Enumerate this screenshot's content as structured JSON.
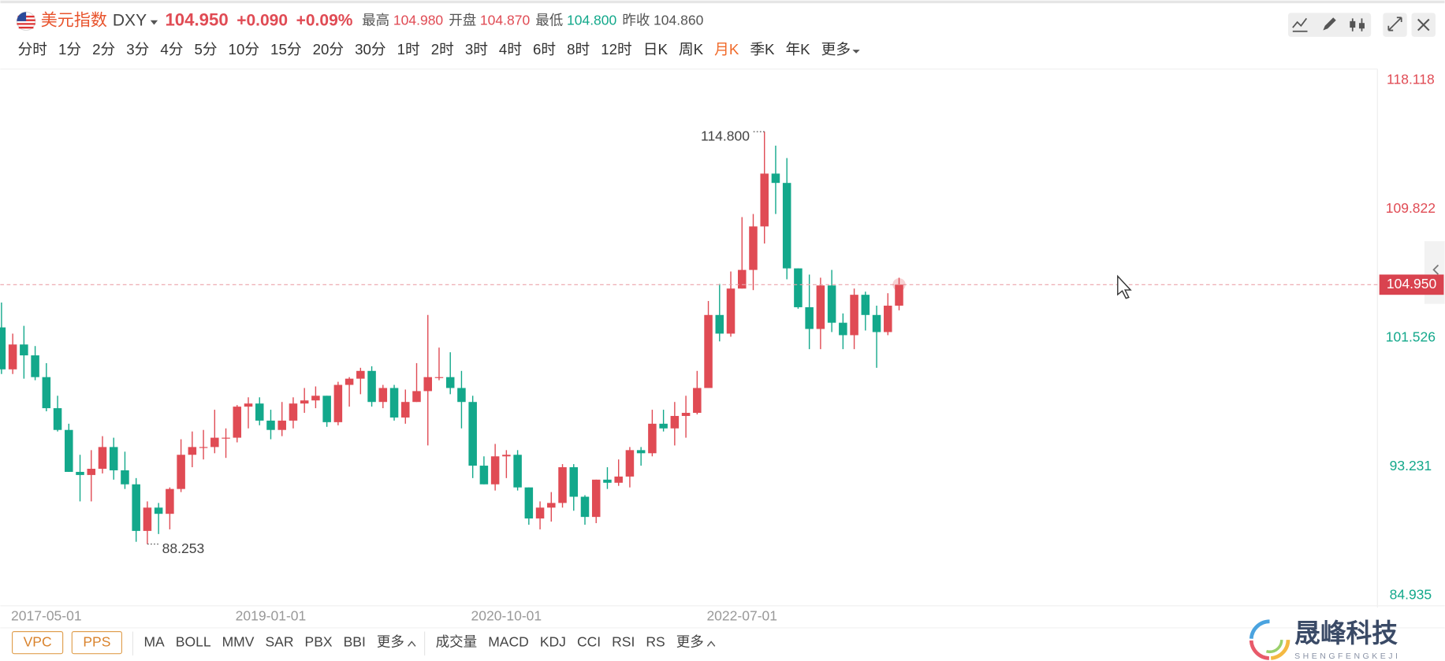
{
  "header": {
    "name": "美元指数",
    "code": "DXY",
    "price": "104.950",
    "change": "+0.090",
    "change_pct": "+0.09%",
    "high_label": "最高",
    "high": "104.980",
    "open_label": "开盘",
    "open": "104.870",
    "low_label": "最低",
    "low": "104.800",
    "prev_label": "昨收",
    "prev": "104.860"
  },
  "periods": [
    {
      "label": "分时"
    },
    {
      "label": "1分"
    },
    {
      "label": "2分"
    },
    {
      "label": "3分"
    },
    {
      "label": "4分"
    },
    {
      "label": "5分"
    },
    {
      "label": "10分"
    },
    {
      "label": "15分"
    },
    {
      "label": "20分"
    },
    {
      "label": "30分"
    },
    {
      "label": "1时"
    },
    {
      "label": "2时"
    },
    {
      "label": "3时"
    },
    {
      "label": "4时"
    },
    {
      "label": "6时"
    },
    {
      "label": "8时"
    },
    {
      "label": "12时"
    },
    {
      "label": "日K"
    },
    {
      "label": "周K"
    },
    {
      "label": "月K",
      "active": true
    },
    {
      "label": "季K"
    },
    {
      "label": "年K"
    },
    {
      "label": "更多"
    }
  ],
  "indicators": {
    "boxed": [
      "VPC",
      "PPS"
    ],
    "main": [
      "MA",
      "BOLL",
      "MMV",
      "SAR",
      "PBX",
      "BBI",
      "更多"
    ],
    "sub": [
      "成交量",
      "MACD",
      "KDJ",
      "CCI",
      "RSI",
      "RS",
      "更多"
    ]
  },
  "logo": {
    "name": "晟峰科技",
    "pinyin": "SHENGFENGKEJI"
  },
  "chart_data": {
    "type": "candlestick",
    "up_color": "#e04b54",
    "down_color": "#13a88b",
    "categories": [
      null,
      null,
      null,
      null,
      "2017-05-01",
      null,
      null,
      null,
      null,
      null,
      null,
      null,
      null,
      null,
      null,
      null,
      null,
      null,
      null,
      null,
      null,
      null,
      null,
      null,
      "2019-01-01",
      null,
      null,
      null,
      null,
      null,
      null,
      null,
      null,
      null,
      null,
      null,
      null,
      null,
      null,
      null,
      null,
      null,
      null,
      null,
      null,
      "2020-10-01",
      null,
      null,
      null,
      null,
      null,
      null,
      null,
      null,
      null,
      null,
      null,
      null,
      null,
      null,
      null,
      null,
      null,
      null,
      null,
      null,
      "2022-07-01",
      null,
      null,
      null,
      null,
      null,
      null,
      null,
      null,
      null,
      null,
      null,
      null,
      null,
      null
    ],
    "open": [
      102.2,
      99.5,
      101.1,
      100.4,
      99.0,
      97.0,
      95.6,
      92.9,
      92.7,
      93.1,
      94.5,
      93.0,
      92.1,
      89.1,
      90.6,
      90.2,
      91.8,
      94.0,
      94.5,
      94.5,
      95.1,
      95.1,
      97.1,
      97.3,
      96.2,
      95.6,
      96.2,
      97.3,
      97.5,
      97.8,
      96.1,
      98.5,
      98.9,
      99.4,
      97.4,
      98.3,
      96.4,
      97.4,
      98.1,
      99.0,
      99.0,
      98.3,
      97.4,
      93.3,
      92.1,
      93.9,
      94.0,
      91.9,
      89.9,
      90.6,
      90.9,
      93.2,
      91.3,
      90.0,
      92.4,
      92.2,
      92.6,
      94.3,
      94.1,
      96.0,
      95.7,
      96.5,
      96.7,
      98.3,
      103.0,
      101.8,
      104.7,
      105.9,
      108.7,
      112.1,
      111.5,
      106.0,
      103.5,
      102.1,
      104.9,
      102.5,
      101.7,
      104.3,
      103.0,
      101.9,
      103.6
    ],
    "high": [
      103.8,
      101.8,
      102.3,
      101.0,
      99.9,
      97.8,
      96.0,
      94.0,
      94.3,
      95.2,
      95.1,
      94.2,
      92.5,
      91.0,
      90.9,
      91.9,
      95.0,
      95.5,
      95.6,
      96.9,
      95.7,
      97.2,
      97.7,
      97.7,
      96.9,
      97.4,
      97.7,
      98.3,
      98.4,
      97.8,
      98.7,
      99.0,
      99.6,
      99.7,
      98.5,
      98.5,
      98.2,
      99.9,
      103.0,
      100.9,
      100.6,
      99.4,
      97.8,
      93.9,
      94.7,
      94.3,
      94.3,
      91.9,
      91.0,
      91.6,
      93.4,
      93.4,
      91.4,
      92.4,
      93.2,
      93.7,
      94.5,
      94.5,
      96.9,
      96.9,
      97.4,
      97.8,
      99.4,
      103.9,
      105.0,
      105.8,
      109.3,
      109.5,
      114.8,
      113.9,
      113.1,
      106.0,
      105.6,
      105.4,
      105.9,
      103.1,
      104.7,
      104.5,
      103.6,
      104.4,
      105.4
    ],
    "low": [
      99.2,
      99.2,
      98.9,
      98.8,
      96.8,
      95.5,
      92.9,
      91.0,
      91.0,
      92.8,
      92.4,
      91.8,
      88.4,
      88.253,
      88.9,
      89.2,
      91.6,
      93.2,
      93.7,
      94.1,
      93.8,
      94.8,
      95.7,
      95.9,
      95.0,
      95.2,
      95.7,
      96.7,
      97.0,
      95.8,
      95.9,
      97.1,
      97.9,
      97.1,
      97.0,
      96.2,
      96.0,
      97.4,
      94.6,
      98.8,
      97.9,
      95.7,
      92.5,
      92.1,
      91.7,
      92.5,
      91.7,
      89.5,
      89.2,
      89.7,
      90.6,
      90.4,
      89.5,
      89.6,
      91.8,
      92.0,
      91.9,
      93.3,
      93.9,
      95.5,
      94.6,
      95.1,
      96.6,
      98.3,
      101.3,
      101.6,
      104.7,
      104.6,
      107.6,
      109.5,
      105.3,
      103.4,
      100.8,
      100.8,
      101.9,
      100.8,
      100.8,
      102.0,
      99.6,
      101.7,
      103.3
    ],
    "close": [
      99.5,
      101.1,
      100.4,
      99.0,
      97.0,
      95.6,
      92.9,
      92.7,
      93.1,
      94.5,
      93.0,
      92.1,
      89.1,
      90.6,
      90.2,
      91.8,
      94.0,
      94.5,
      94.5,
      95.1,
      95.1,
      97.1,
      97.3,
      96.2,
      95.6,
      96.2,
      97.3,
      97.5,
      97.8,
      96.1,
      98.5,
      98.9,
      99.4,
      97.4,
      98.3,
      96.4,
      97.4,
      98.1,
      99.0,
      99.0,
      98.3,
      97.4,
      93.3,
      92.1,
      93.9,
      94.0,
      91.9,
      89.9,
      90.6,
      90.9,
      93.2,
      91.3,
      90.0,
      92.4,
      92.2,
      92.6,
      94.3,
      94.1,
      96.0,
      95.7,
      96.5,
      96.7,
      98.3,
      103.0,
      101.8,
      104.7,
      105.9,
      108.7,
      112.1,
      111.5,
      106.0,
      103.5,
      102.1,
      104.9,
      102.5,
      101.7,
      104.3,
      103.0,
      101.9,
      103.6,
      104.95
    ],
    "ylim": [
      84.46,
      118.83
    ],
    "yticks": [
      84.935,
      93.231,
      101.526,
      109.822,
      118.118
    ],
    "last": {
      "value": 104.95,
      "label": "104.950"
    },
    "annotations": [
      {
        "value": 114.8,
        "label": "114.800",
        "side": "left"
      },
      {
        "value": 88.253,
        "label": "88.253",
        "side": "right"
      }
    ]
  }
}
